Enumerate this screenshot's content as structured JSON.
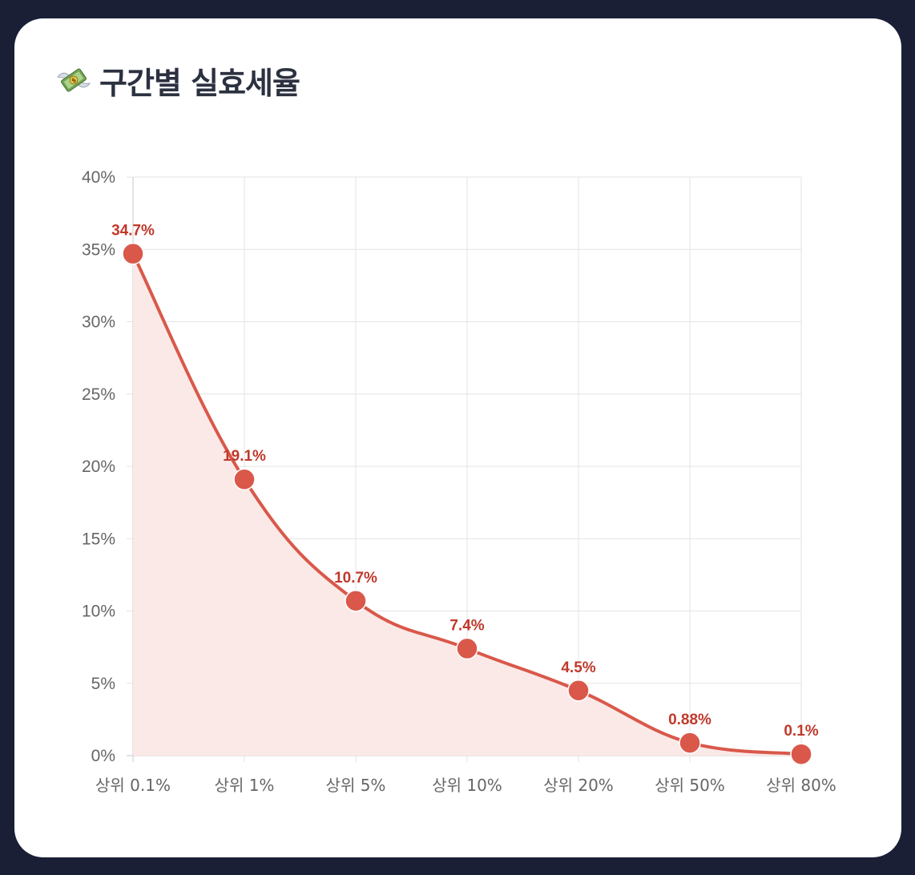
{
  "title": {
    "icon": "money-with-wings-icon",
    "text": "구간별 실효세율"
  },
  "colors": {
    "page_background": "#1a1f36",
    "card_background": "#ffffff",
    "line": "#d9584a",
    "point": "#d9584a",
    "fill": "#fbe9e7",
    "data_label": "#c0392b",
    "grid": "#e3e3e3",
    "tick_text": "#666666"
  },
  "chart_data": {
    "type": "line",
    "categories": [
      "상위 0.1%",
      "상위 1%",
      "상위 5%",
      "상위 10%",
      "상위 20%",
      "상위 50%",
      "상위 80%"
    ],
    "series": [
      {
        "values": [
          34.7,
          19.1,
          10.7,
          7.4,
          4.5,
          0.88,
          0.1
        ],
        "labels": [
          "34.7%",
          "19.1%",
          "10.7%",
          "7.4%",
          "4.5%",
          "0.88%",
          "0.1%"
        ]
      }
    ],
    "ylim": [
      0,
      40
    ],
    "y_ticks": [
      "0%",
      "5%",
      "10%",
      "15%",
      "20%",
      "25%",
      "30%",
      "35%",
      "40%"
    ],
    "y_tick_values": [
      0,
      5,
      10,
      15,
      20,
      25,
      30,
      35,
      40
    ],
    "fill_area": true,
    "smooth": true,
    "grid": true,
    "legend": "none"
  }
}
